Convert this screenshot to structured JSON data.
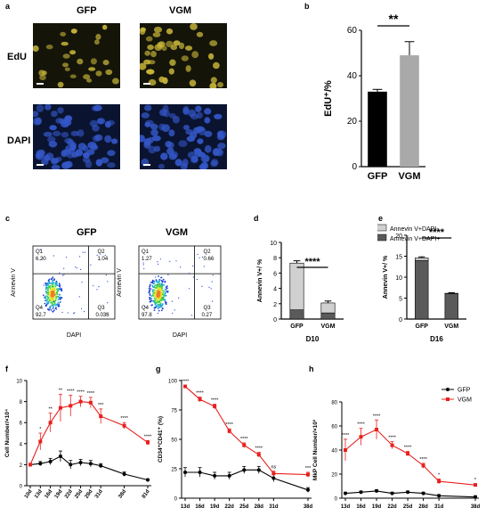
{
  "panel_letters": {
    "a": "a",
    "b": "b",
    "c": "c",
    "d": "d",
    "e": "e",
    "f": "f",
    "g": "g",
    "h": "h"
  },
  "panel_a": {
    "columns": [
      "GFP",
      "VGM"
    ],
    "rows": [
      "EdU",
      "DAPI"
    ],
    "colors": {
      "edu": "#c8b63a",
      "dapi": "#3457c9",
      "bg_dapi": "#0a1430",
      "bg_edu": "#141409"
    }
  },
  "panel_c": {
    "titles": [
      "GFP",
      "VGM"
    ],
    "xlabel": "DAPI",
    "ylabel": "Annevin V",
    "gfp": {
      "q1": "6.20",
      "q2": "1.04",
      "q3": "0.038",
      "q4": "92.7"
    },
    "vgm": {
      "q1": "1.27",
      "q2": "0.66",
      "q3": "0.27",
      "q4": "97.8"
    },
    "quad_names": [
      "Q1",
      "Q2",
      "Q3",
      "Q4"
    ]
  },
  "chart_data": [
    {
      "id": "b",
      "type": "bar",
      "categories": [
        "GFP",
        "VGM"
      ],
      "values": [
        33,
        49
      ],
      "errors": [
        1,
        6
      ],
      "ylabel": "EdU⁺/%",
      "ylim": [
        0,
        60
      ],
      "yticks": [
        0,
        20,
        40,
        60
      ],
      "colors": [
        "#000000",
        "#a9a9a9"
      ],
      "sig": "**"
    },
    {
      "id": "d",
      "type": "bar",
      "stacked": true,
      "categories": [
        "GFP",
        "VGM"
      ],
      "series": [
        {
          "name": "Annevin V+DAPI+",
          "values": [
            1.2,
            0.8
          ],
          "color": "#5a5a5a"
        },
        {
          "name": "Annevin V+DAPI-",
          "values": [
            6.1,
            1.3
          ],
          "color": "#d0d0d0"
        }
      ],
      "errors": [
        0.3,
        0.25
      ],
      "ylabel": "Annevin V+/ %",
      "xlabel": "D10",
      "ylim": [
        0,
        10
      ],
      "yticks": [
        0,
        2,
        4,
        6,
        8,
        10
      ],
      "sig": "****"
    },
    {
      "id": "e",
      "type": "bar",
      "stacked": true,
      "categories": [
        "GFP",
        "VGM"
      ],
      "series": [
        {
          "name": "Annevin V+DAPI+",
          "values": [
            14.0,
            6.1
          ],
          "color": "#5a5a5a"
        },
        {
          "name": "Annevin V+DAPI-",
          "values": [
            0.6,
            0.05
          ],
          "color": "#d0d0d0"
        }
      ],
      "errors": [
        0.25,
        0.15
      ],
      "ylabel": "Annevin V+/ %",
      "xlabel": "D16",
      "ylim": [
        0,
        20
      ],
      "yticks": [
        0,
        5,
        10,
        15,
        20
      ],
      "sig": "****",
      "legend": [
        "Annevin V+DAPI-",
        "Annevin V+DAPI+"
      ]
    },
    {
      "id": "f",
      "type": "line",
      "x": [
        "10d",
        "13d",
        "16d",
        "19d",
        "22d",
        "25d",
        "28d",
        "31d",
        "38d",
        "81d"
      ],
      "xpos": [
        10,
        13,
        16,
        19,
        22,
        25,
        28,
        31,
        38,
        45
      ],
      "series": [
        {
          "name": "GFP",
          "values": [
            2.0,
            2.1,
            2.3,
            2.8,
            2.0,
            2.2,
            2.1,
            1.9,
            1.1,
            0.55
          ],
          "errors": [
            0.1,
            0.2,
            0.3,
            0.5,
            0.4,
            0.3,
            0.3,
            0.2,
            0.2,
            0.1
          ],
          "color": "#000000"
        },
        {
          "name": "VGM",
          "values": [
            2.0,
            4.2,
            6.0,
            7.4,
            7.6,
            8.0,
            7.9,
            6.6,
            5.7,
            4.1
          ],
          "errors": [
            0.1,
            0.8,
            0.9,
            1.3,
            1.0,
            0.5,
            0.5,
            0.7,
            0.3,
            0.2
          ],
          "color": "#e8201d"
        }
      ],
      "sig": [
        "",
        "*",
        "**",
        "**",
        "****",
        "****",
        "****",
        "***",
        "****",
        "****"
      ],
      "ylabel": "Cell Number/×10⁴",
      "ylim": [
        0,
        10
      ],
      "yticks": [
        0,
        2,
        4,
        6,
        8,
        10
      ]
    },
    {
      "id": "g",
      "type": "line",
      "x": [
        "13d",
        "16d",
        "19d",
        "22d",
        "25d",
        "28d",
        "31d",
        "38d"
      ],
      "xpos": [
        13,
        16,
        19,
        22,
        25,
        28,
        31,
        38
      ],
      "series": [
        {
          "name": "GFP",
          "values": [
            22,
            22,
            19,
            19,
            24,
            24,
            17,
            7
          ],
          "errors": [
            4,
            4,
            3,
            3,
            3,
            3,
            3,
            2
          ],
          "color": "#000000"
        },
        {
          "name": "VGM",
          "values": [
            95,
            84,
            78,
            57,
            45,
            37,
            21,
            20
          ],
          "errors": [
            1,
            2,
            2,
            2,
            2,
            2,
            2,
            2
          ],
          "color": "#e8201d"
        }
      ],
      "sig": [
        "****",
        "****",
        "****",
        "****",
        "****",
        "****",
        "ns",
        "***"
      ],
      "ylabel": "CD34⁺CD41⁺ (%)",
      "ylim": [
        0,
        100
      ],
      "yticks": [
        0,
        25,
        50,
        75,
        100
      ]
    },
    {
      "id": "h",
      "type": "line",
      "x": [
        "13d",
        "16d",
        "19d",
        "22d",
        "25d",
        "28d",
        "31d",
        "38d"
      ],
      "xpos": [
        13,
        16,
        19,
        22,
        25,
        28,
        31,
        38
      ],
      "series": [
        {
          "name": "GFP",
          "values": [
            4,
            5,
            6,
            4,
            5,
            4,
            2,
            1
          ],
          "errors": [
            1,
            1,
            1,
            1,
            1,
            1,
            1,
            1
          ],
          "color": "#000000"
        },
        {
          "name": "VGM",
          "values": [
            40,
            51,
            57,
            44,
            37,
            27,
            14,
            11
          ],
          "errors": [
            9,
            7,
            8,
            3,
            2,
            2,
            2,
            1
          ],
          "color": "#e8201d"
        }
      ],
      "sig": [
        "****",
        "****",
        "****",
        "****",
        "****",
        "****",
        "*",
        "*"
      ],
      "ylabel": "MkP Cell Number/×10³",
      "ylim": [
        0,
        80
      ],
      "yticks": [
        0,
        20,
        40,
        60,
        80
      ],
      "legend": [
        "GFP",
        "VGM"
      ]
    }
  ]
}
